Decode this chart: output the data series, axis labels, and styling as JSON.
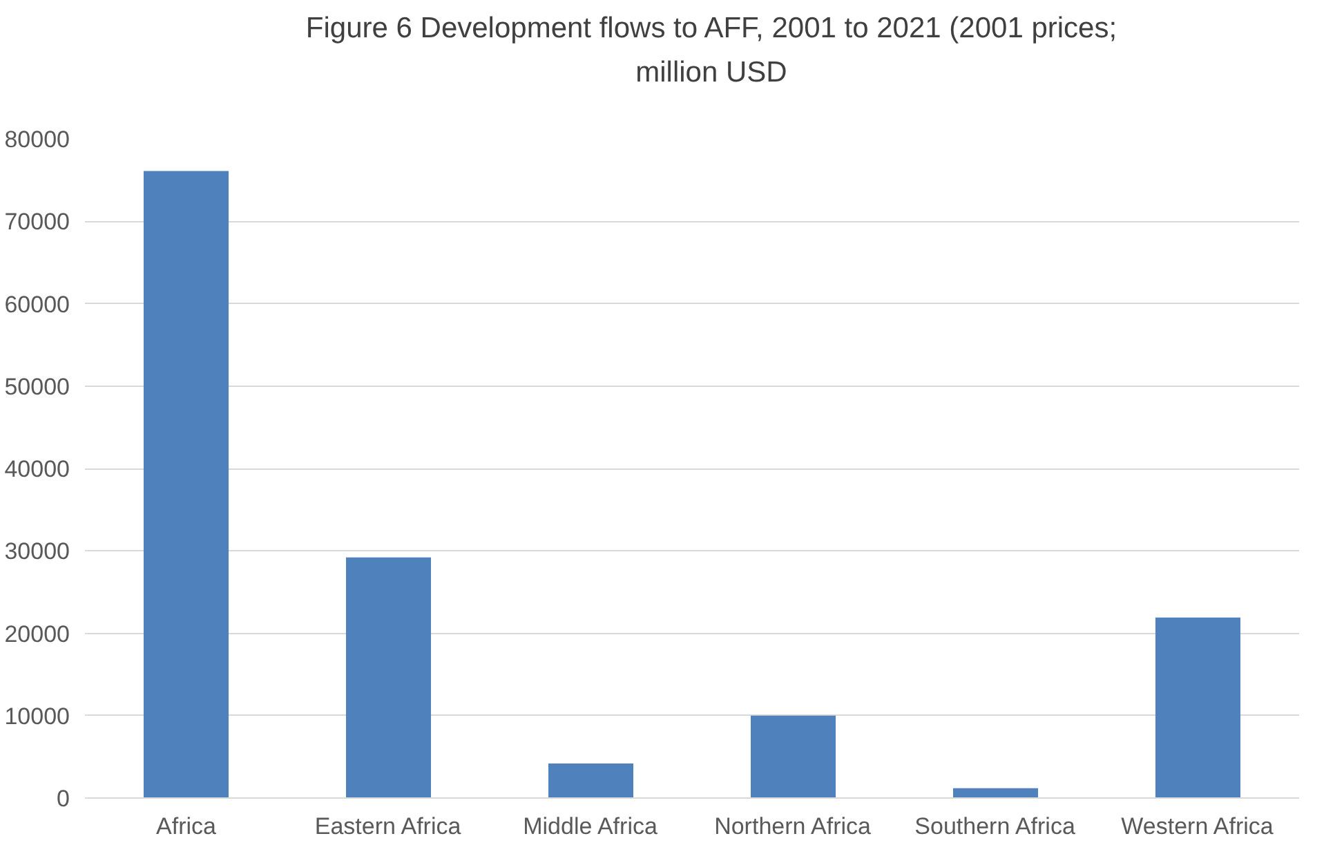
{
  "chart_data": {
    "type": "bar",
    "title": "Figure 6 Development flows to AFF, 2001 to 2021 (2001 prices; million USD",
    "categories": [
      "Africa",
      "Eastern Africa",
      "Middle Africa",
      "Northern Africa",
      "Southern Africa",
      "Western Africa"
    ],
    "values": [
      76100,
      29200,
      4200,
      10000,
      1200,
      21900
    ],
    "color": "#4f81bd",
    "ylim": [
      0,
      80000
    ],
    "yticks": [
      0,
      10000,
      20000,
      30000,
      40000,
      50000,
      60000,
      70000,
      80000
    ],
    "grid": "y"
  }
}
